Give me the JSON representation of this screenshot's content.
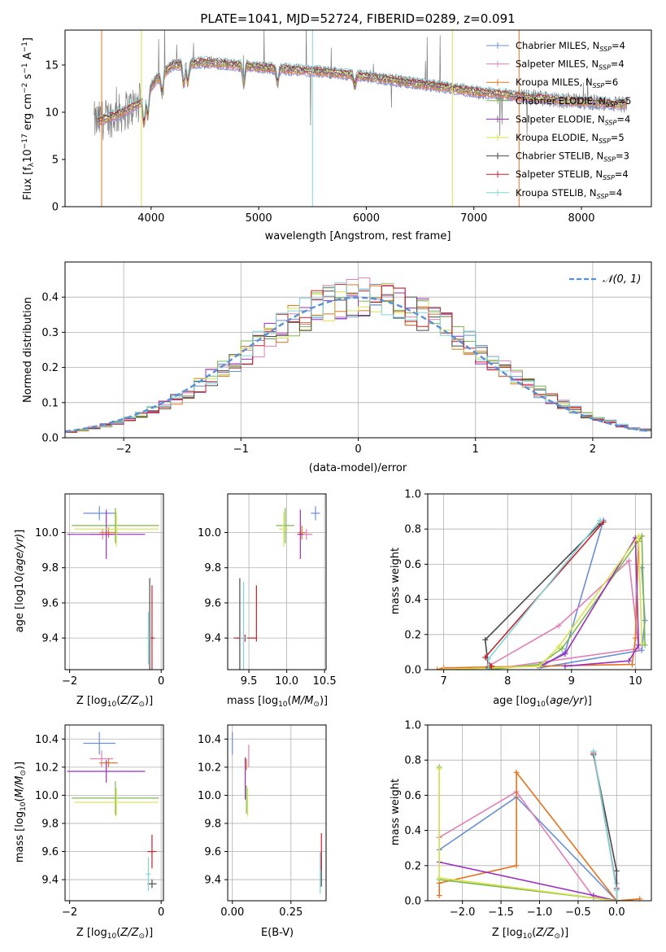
{
  "colors": {
    "chabrier_miles": "#6a8fd8",
    "salpeter_miles": "#e17fb8",
    "kroupa_miles": "#e8731c",
    "chabrier_elodie": "#7db84f",
    "salpeter_elodie": "#9b2fc1",
    "kroupa_elodie": "#d6e34a",
    "chabrier_stelib": "#4a4a4a",
    "salpeter_stelib": "#c8202a",
    "kroupa_stelib": "#7fd6dc",
    "normal_curve": "#5b8fd6"
  },
  "chart_data": [
    {
      "id": "spectrum",
      "type": "line",
      "title": "PLATE=1041, MJD=52724, FIBERID=0289, z=0.091",
      "xlabel": "wavelength [Angstrom, rest frame]",
      "ylabel": "Flux [f",
      "ylabel_parts": [
        "Flux [f",
        "λ",
        "10",
        "−17",
        " erg cm",
        "−2",
        " s",
        "−1",
        " A",
        "−1",
        "]"
      ],
      "xlim": [
        3200,
        8650
      ],
      "ylim": [
        0,
        18.7
      ],
      "xticks": [
        4000,
        5000,
        6000,
        7000,
        8000
      ],
      "yticks": [
        0,
        5,
        10,
        15
      ],
      "legend_position": "top-right",
      "legend": [
        {
          "base": "Chabrier MILES, N",
          "sub": "SSP",
          "val": "=4",
          "key": "chabrier_miles"
        },
        {
          "base": "Salpeter MILES, N",
          "sub": "SSP",
          "val": "=4",
          "key": "salpeter_miles"
        },
        {
          "base": "Kroupa MILES, N",
          "sub": "SSP",
          "val": "=6",
          "key": "kroupa_miles"
        },
        {
          "base": "Chabrier ELODIE, N",
          "sub": "SSP",
          "val": "=5",
          "key": "chabrier_elodie"
        },
        {
          "base": "Salpeter ELODIE, N",
          "sub": "SSP",
          "val": "=4",
          "key": "salpeter_elodie"
        },
        {
          "base": "Kroupa ELODIE, N",
          "sub": "SSP",
          "val": "=5",
          "key": "kroupa_elodie"
        },
        {
          "base": "Chabrier STELIB, N",
          "sub": "SSP",
          "val": "=3",
          "key": "chabrier_stelib"
        },
        {
          "base": "Salpeter STELIB, N",
          "sub": "SSP",
          "val": "=4",
          "key": "salpeter_stelib"
        },
        {
          "base": "Kroupa STELIB, N",
          "sub": "SSP",
          "val": "=4",
          "key": "kroupa_stelib"
        }
      ],
      "continuum": [
        [
          3500,
          9.0
        ],
        [
          3700,
          9.8
        ],
        [
          3900,
          11.0
        ],
        [
          4050,
          13.5
        ],
        [
          4200,
          15.0
        ],
        [
          4500,
          15.3
        ],
        [
          4800,
          15.0
        ],
        [
          5200,
          14.6
        ],
        [
          5600,
          14.3
        ],
        [
          6000,
          13.8
        ],
        [
          6500,
          13.0
        ],
        [
          7000,
          12.2
        ],
        [
          7500,
          11.6
        ],
        [
          8000,
          11.1
        ],
        [
          8400,
          10.8
        ]
      ]
    },
    {
      "id": "residuals",
      "type": "histogram",
      "xlabel": "(data-model)/error",
      "ylabel": "Normed distribution",
      "xlim": [
        -2.5,
        2.5
      ],
      "ylim": [
        0,
        0.5
      ],
      "xticks": [
        -2,
        -1,
        0,
        1,
        2
      ],
      "yticks": [
        0.0,
        0.1,
        0.2,
        0.3,
        0.4
      ],
      "legend_position": "top-right",
      "legend_label": "𝒩(0, 1)",
      "bin_width": 0.1
    },
    {
      "id": "age_vs_Z",
      "type": "errorbar",
      "xlabel": "Z [log",
      "ylabel": "age  [log",
      "xlim": [
        -2.1,
        0.05
      ],
      "ylim": [
        9.22,
        10.22
      ],
      "xticks": [
        -2,
        0
      ],
      "yticks": [
        9.4,
        9.6,
        9.8,
        10.0
      ],
      "points": [
        {
          "key": "chabrier_miles",
          "x": -1.35,
          "y": 10.11,
          "xerr": 0.35,
          "yerr": 0.04
        },
        {
          "key": "salpeter_miles",
          "x": -1.28,
          "y": 9.99,
          "xerr": 0.27,
          "yerr": 0.03
        },
        {
          "key": "kroupa_miles",
          "x": -1.15,
          "y": 10.0,
          "xerr": 0.2,
          "yerr": 0.03
        },
        {
          "key": "chabrier_elodie",
          "x": -1.0,
          "y": 10.04,
          "xerr": 0.95,
          "yerr": 0.1
        },
        {
          "key": "salpeter_elodie",
          "x": -1.2,
          "y": 9.99,
          "xerr": 0.85,
          "yerr": 0.14
        },
        {
          "key": "kroupa_elodie",
          "x": -0.98,
          "y": 10.02,
          "xerr": 0.92,
          "yerr": 0.1
        },
        {
          "key": "chabrier_stelib",
          "x": -0.25,
          "y": 9.4,
          "xerr": 0.04,
          "yerr": 0.34
        },
        {
          "key": "salpeter_stelib",
          "x": -0.2,
          "y": 9.4,
          "xerr": 0.06,
          "yerr": 0.3
        },
        {
          "key": "kroupa_stelib",
          "x": -0.28,
          "y": 9.4,
          "xerr": 0.05,
          "yerr": 0.15
        }
      ]
    },
    {
      "id": "age_vs_mass",
      "type": "errorbar",
      "xlabel": "mass [log",
      "xlim": [
        9.22,
        10.52
      ],
      "ylim": [
        9.22,
        10.22
      ],
      "xticks": [
        9.5,
        10.0,
        10.5
      ],
      "yticks": [
        9.4,
        9.6,
        9.8,
        10.0
      ],
      "points": [
        {
          "key": "chabrier_miles",
          "x": 10.38,
          "y": 10.11,
          "xerr": 0.06,
          "yerr": 0.04
        },
        {
          "key": "salpeter_miles",
          "x": 10.26,
          "y": 9.99,
          "xerr": 0.08,
          "yerr": 0.03
        },
        {
          "key": "kroupa_miles",
          "x": 10.2,
          "y": 10.0,
          "xerr": 0.05,
          "yerr": 0.04
        },
        {
          "key": "chabrier_elodie",
          "x": 9.98,
          "y": 10.04,
          "xerr": 0.12,
          "yerr": 0.1
        },
        {
          "key": "salpeter_elodie",
          "x": 10.18,
          "y": 9.99,
          "xerr": 0.04,
          "yerr": 0.14
        },
        {
          "key": "kroupa_elodie",
          "x": 9.96,
          "y": 10.02,
          "xerr": 0.06,
          "yerr": 0.1
        },
        {
          "key": "chabrier_stelib",
          "x": 9.38,
          "y": 9.4,
          "xerr": 0.03,
          "yerr": 0.34
        },
        {
          "key": "salpeter_stelib",
          "x": 9.45,
          "y": 9.4,
          "xerr": 0.15,
          "yerr": 0.02
        },
        {
          "key": "salpeter_stelib",
          "x": 9.6,
          "y": 9.54,
          "xerr": 0.0,
          "yerr": 0.16
        },
        {
          "key": "kroupa_stelib",
          "x": 9.43,
          "y": 9.4,
          "xerr": 0.05,
          "yerr": 0.32
        }
      ]
    },
    {
      "id": "weight_vs_age",
      "type": "line",
      "xlabel": "age  [log",
      "ylabel": "mass weight",
      "xlim": [
        6.75,
        10.25
      ],
      "ylim": [
        0,
        1.0
      ],
      "xticks": [
        7,
        8,
        9,
        10
      ],
      "yticks": [
        0.0,
        0.2,
        0.4,
        0.6,
        0.8,
        1.0
      ],
      "series": [
        {
          "key": "chabrier_miles",
          "points": [
            [
              10.1,
              0.58
            ],
            [
              10.15,
              0.28
            ],
            [
              10.1,
              0.11
            ],
            [
              8.5,
              0.01
            ],
            [
              8.9,
              0.1
            ],
            [
              9.5,
              0.85
            ]
          ]
        },
        {
          "key": "salpeter_miles",
          "points": [
            [
              7.7,
              0.02
            ],
            [
              8.8,
              0.25
            ],
            [
              9.9,
              0.62
            ],
            [
              10.05,
              0.12
            ],
            [
              7.7,
              0.0
            ]
          ]
        },
        {
          "key": "kroupa_miles",
          "points": [
            [
              6.9,
              0.0
            ],
            [
              7.0,
              0.01
            ],
            [
              9.95,
              0.03
            ],
            [
              10.0,
              0.18
            ],
            [
              10.05,
              0.73
            ],
            [
              10.1,
              0.76
            ]
          ]
        },
        {
          "key": "chabrier_elodie",
          "points": [
            [
              7.7,
              0.0
            ],
            [
              8.5,
              0.03
            ],
            [
              8.85,
              0.12
            ],
            [
              10.1,
              0.76
            ],
            [
              10.15,
              0.14
            ]
          ]
        },
        {
          "key": "salpeter_elodie",
          "points": [
            [
              8.5,
              0.02
            ],
            [
              8.9,
              0.09
            ],
            [
              10.0,
              0.75
            ],
            [
              10.05,
              0.14
            ],
            [
              9.9,
              0.05
            ],
            [
              8.9,
              0.02
            ]
          ]
        },
        {
          "key": "kroupa_elodie",
          "points": [
            [
              7.0,
              0.0
            ],
            [
              8.5,
              0.02
            ],
            [
              8.8,
              0.13
            ],
            [
              10.05,
              0.76
            ],
            [
              10.1,
              0.15
            ]
          ]
        },
        {
          "key": "chabrier_stelib",
          "points": [
            [
              7.7,
              0.01
            ],
            [
              7.65,
              0.17
            ],
            [
              9.45,
              0.83
            ]
          ]
        },
        {
          "key": "salpeter_stelib",
          "points": [
            [
              7.75,
              0.02
            ],
            [
              7.65,
              0.07
            ],
            [
              9.5,
              0.84
            ]
          ]
        },
        {
          "key": "kroupa_stelib",
          "points": [
            [
              7.7,
              0.0
            ],
            [
              7.7,
              0.06
            ],
            [
              9.45,
              0.85
            ]
          ]
        }
      ]
    },
    {
      "id": "mass_vs_Z",
      "type": "errorbar",
      "xlabel": "Z [log",
      "ylabel": "mass [log",
      "xlim": [
        -2.1,
        0.05
      ],
      "ylim": [
        9.25,
        10.5
      ],
      "xticks": [
        -2,
        0
      ],
      "yticks": [
        9.4,
        9.6,
        9.8,
        10.0,
        10.2,
        10.4
      ],
      "points": [
        {
          "key": "chabrier_miles",
          "x": -1.35,
          "y": 10.37,
          "xerr": 0.35,
          "yerr": 0.08
        },
        {
          "key": "salpeter_miles",
          "x": -1.3,
          "y": 10.26,
          "xerr": 0.25,
          "yerr": 0.06
        },
        {
          "key": "kroupa_miles",
          "x": -1.15,
          "y": 10.23,
          "xerr": 0.2,
          "yerr": 0.03
        },
        {
          "key": "chabrier_elodie",
          "x": -1.0,
          "y": 9.98,
          "xerr": 0.95,
          "yerr": 0.12
        },
        {
          "key": "salpeter_elodie",
          "x": -1.2,
          "y": 10.17,
          "xerr": 0.85,
          "yerr": 0.08
        },
        {
          "key": "kroupa_elodie",
          "x": -0.98,
          "y": 9.95,
          "xerr": 0.92,
          "yerr": 0.1
        },
        {
          "key": "chabrier_stelib",
          "x": -0.2,
          "y": 9.37,
          "xerr": 0.1,
          "yerr": 0.03
        },
        {
          "key": "salpeter_stelib",
          "x": -0.2,
          "y": 9.6,
          "xerr": 0.1,
          "yerr": 0.12
        },
        {
          "key": "kroupa_stelib",
          "x": -0.28,
          "y": 9.44,
          "xerr": 0.05,
          "yerr": 0.12
        }
      ]
    },
    {
      "id": "mass_vs_ebv",
      "type": "errorbar",
      "xlabel": "E(B-V)",
      "xlim": [
        -0.02,
        0.4
      ],
      "ylim": [
        9.25,
        10.5
      ],
      "xticks": [
        0.0,
        0.25
      ],
      "yticks": [
        9.4,
        9.6,
        9.8,
        10.0,
        10.2,
        10.4
      ],
      "points": [
        {
          "key": "chabrier_miles",
          "x": 0.0,
          "y": 10.37,
          "xerr": 0.0,
          "yerr": 0.08
        },
        {
          "key": "salpeter_miles",
          "x": 0.07,
          "y": 10.28,
          "xerr": 0.0,
          "yerr": 0.08
        },
        {
          "key": "kroupa_miles",
          "x": 0.06,
          "y": 10.22,
          "xerr": 0.0,
          "yerr": 0.04
        },
        {
          "key": "chabrier_elodie",
          "x": 0.06,
          "y": 9.97,
          "xerr": 0.0,
          "yerr": 0.1
        },
        {
          "key": "salpeter_elodie",
          "x": 0.055,
          "y": 10.12,
          "xerr": 0.0,
          "yerr": 0.15
        },
        {
          "key": "kroupa_elodie",
          "x": 0.065,
          "y": 9.95,
          "xerr": 0.0,
          "yerr": 0.1
        },
        {
          "key": "chabrier_stelib",
          "x": 0.38,
          "y": 9.47,
          "xerr": 0.0,
          "yerr": 0.12
        },
        {
          "key": "salpeter_stelib",
          "x": 0.38,
          "y": 9.6,
          "xerr": 0.0,
          "yerr": 0.13
        },
        {
          "key": "kroupa_stelib",
          "x": 0.375,
          "y": 9.45,
          "xerr": 0.0,
          "yerr": 0.15
        }
      ]
    },
    {
      "id": "weight_vs_Z",
      "type": "line",
      "xlabel": "Z [log",
      "ylabel": "mass weight",
      "xlim": [
        -2.45,
        0.45
      ],
      "ylim": [
        0,
        1.0
      ],
      "xticks": [
        -2.0,
        -1.5,
        -1.0,
        -0.5,
        0.0
      ],
      "yticks": [
        0.0,
        0.2,
        0.4,
        0.6,
        0.8,
        1.0
      ],
      "series": [
        {
          "key": "chabrier_miles",
          "points": [
            [
              -2.3,
              0.29
            ],
            [
              -1.3,
              0.59
            ],
            [
              0.0,
              0.0
            ],
            [
              0.0,
              0.06
            ],
            [
              -0.3,
              0.85
            ]
          ]
        },
        {
          "key": "salpeter_miles",
          "points": [
            [
              -2.3,
              0.36
            ],
            [
              -1.3,
              0.62
            ],
            [
              -0.3,
              0.02
            ],
            [
              0.0,
              0.0
            ],
            [
              0.0,
              0.1
            ]
          ]
        },
        {
          "key": "kroupa_miles",
          "points": [
            [
              -2.3,
              0.03
            ],
            [
              -2.3,
              0.1
            ],
            [
              -1.3,
              0.2
            ],
            [
              -1.3,
              0.73
            ],
            [
              0.0,
              0.0
            ],
            [
              0.3,
              0.01
            ]
          ]
        },
        {
          "key": "chabrier_elodie",
          "points": [
            [
              -2.3,
              0.76
            ],
            [
              -2.3,
              0.12
            ],
            [
              0.0,
              0.0
            ]
          ]
        },
        {
          "key": "salpeter_elodie",
          "points": [
            [
              -2.3,
              0.22
            ],
            [
              -0.3,
              0.03
            ],
            [
              0.0,
              0.0
            ]
          ]
        },
        {
          "key": "kroupa_elodie",
          "points": [
            [
              -2.3,
              0.75
            ],
            [
              -2.3,
              0.13
            ],
            [
              0.0,
              0.0
            ]
          ]
        },
        {
          "key": "chabrier_stelib",
          "points": [
            [
              -0.3,
              0.83
            ],
            [
              0.0,
              0.17
            ],
            [
              0.0,
              0.0
            ]
          ]
        },
        {
          "key": "salpeter_stelib",
          "points": [
            [
              -0.3,
              0.84
            ],
            [
              0.0,
              0.07
            ],
            [
              0.0,
              0.0
            ]
          ]
        },
        {
          "key": "kroupa_stelib",
          "points": [
            [
              -0.3,
              0.85
            ],
            [
              0.0,
              0.06
            ],
            [
              0.0,
              0.0
            ]
          ]
        }
      ]
    }
  ]
}
